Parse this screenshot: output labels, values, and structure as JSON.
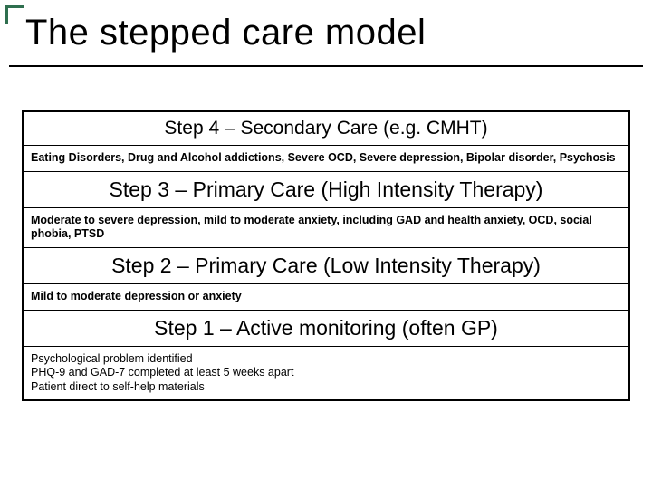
{
  "slide": {
    "title": "The stepped care model",
    "accent_color": "#2f6f4f",
    "underline_color": "#000000",
    "border_color": "#000000",
    "background_color": "#ffffff",
    "title_fontsize": 40,
    "header_fontsize_top": 21,
    "header_fontsize_rest": 23,
    "body_fontsize": 12.5
  },
  "steps": {
    "s4": {
      "header": "Step 4 – Secondary Care (e.g. CMHT)",
      "body": "Eating Disorders, Drug and Alcohol addictions, Severe OCD, Severe depression, Bipolar disorder, Psychosis"
    },
    "s3": {
      "header": "Step 3 – Primary Care (High Intensity Therapy)",
      "body": "Moderate to severe depression,  mild to moderate anxiety, including GAD and health anxiety, OCD, social phobia, PTSD"
    },
    "s2": {
      "header": "Step 2 – Primary Care (Low Intensity Therapy)",
      "body": "Mild to moderate depression or anxiety"
    },
    "s1": {
      "header": "Step 1 – Active monitoring (often GP)",
      "body_lines": {
        "l1": "Psychological problem identified",
        "l2": "PHQ-9 and GAD-7 completed at least 5 weeks apart",
        "l3": "Patient direct to self-help materials"
      }
    }
  }
}
